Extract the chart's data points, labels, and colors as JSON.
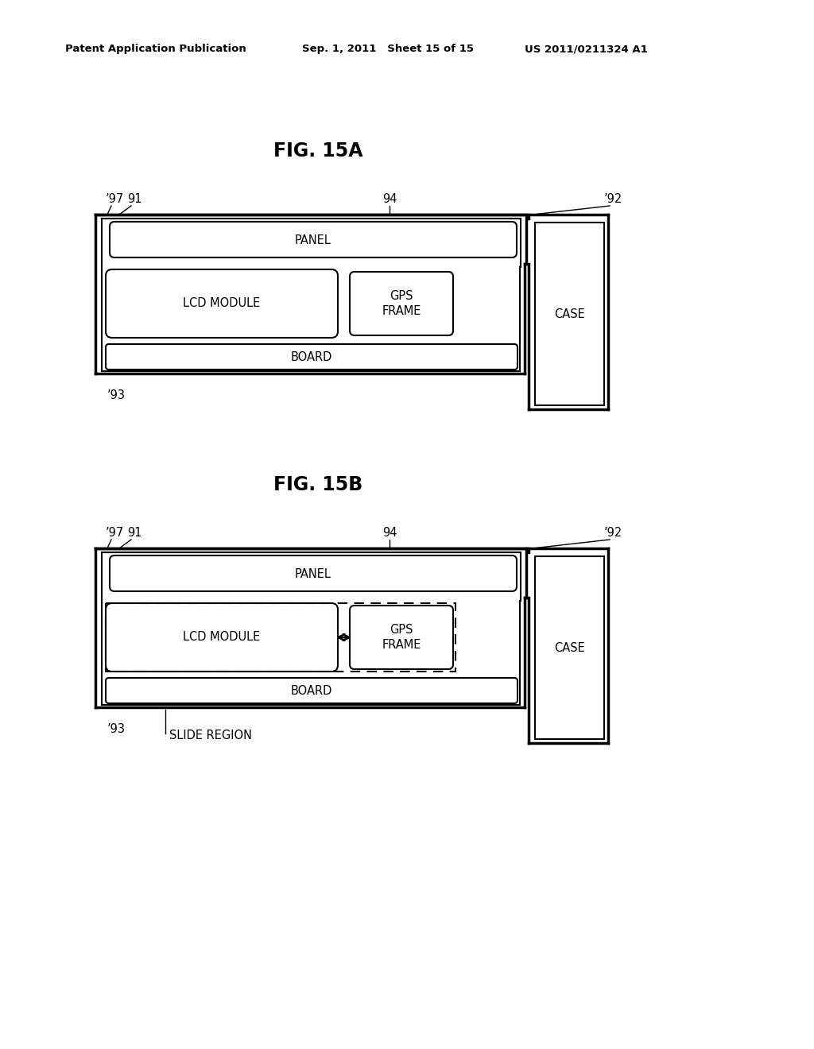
{
  "bg_color": "#ffffff",
  "text_color": "#000000",
  "header_left": "Patent Application Publication",
  "header_mid": "Sep. 1, 2011   Sheet 15 of 15",
  "header_right": "US 2011/0211324 A1",
  "fig_title_a": "FIG. 15A",
  "fig_title_b": "FIG. 15B",
  "lw_outer": 2.0,
  "lw_inner": 1.5,
  "fs_header": 9.5,
  "fs_title": 17,
  "fs_label": 10.5,
  "fs_num": 10.5
}
